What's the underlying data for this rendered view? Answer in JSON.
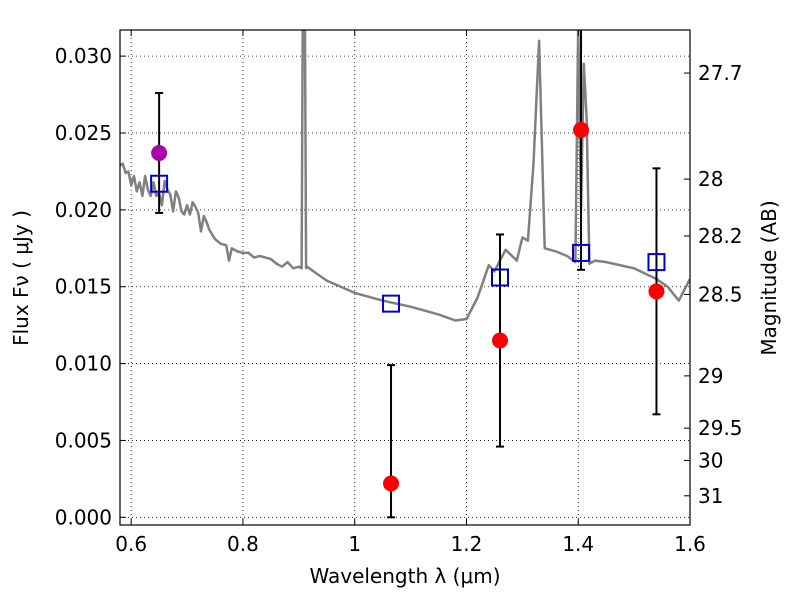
{
  "chart_data": {
    "type": "scatter",
    "xlabel": "Wavelength  λ (μm)",
    "ylabel": "Flux  Fν  ( μJy )",
    "y2label": "Magnitude (AB)",
    "xlim": [
      0.58,
      1.6
    ],
    "ylim": [
      -0.0005,
      0.0317
    ],
    "grid": true,
    "x_ticks": [
      0.6,
      0.8,
      1.0,
      1.2,
      1.4,
      1.6
    ],
    "x_tick_labels": [
      "0.6",
      "0.8",
      "1",
      "1.2",
      "1.4",
      "1.6"
    ],
    "y_ticks": [
      0.0,
      0.005,
      0.01,
      0.015,
      0.02,
      0.025,
      0.03
    ],
    "y_tick_labels": [
      "0.000",
      "0.005",
      "0.010",
      "0.015",
      "0.020",
      "0.025",
      "0.030"
    ],
    "y2_ticks": [
      {
        "flux": 0.0289,
        "label": "27.7"
      },
      {
        "flux": 0.022,
        "label": "28"
      },
      {
        "flux": 0.0183,
        "label": "28.2"
      },
      {
        "flux": 0.0145,
        "label": "28.5"
      },
      {
        "flux": 0.0092,
        "label": "29"
      },
      {
        "flux": 0.0058,
        "label": "29.5"
      },
      {
        "flux": 0.0037,
        "label": "30"
      },
      {
        "flux": 0.0014,
        "label": "31"
      }
    ],
    "series": [
      {
        "kind": "line",
        "color": "#808080",
        "x": [
          0.58,
          0.585,
          0.59,
          0.595,
          0.6,
          0.605,
          0.61,
          0.615,
          0.62,
          0.625,
          0.63,
          0.635,
          0.64,
          0.645,
          0.65,
          0.655,
          0.66,
          0.665,
          0.67,
          0.675,
          0.68,
          0.685,
          0.69,
          0.695,
          0.7,
          0.705,
          0.71,
          0.715,
          0.72,
          0.725,
          0.73,
          0.735,
          0.74,
          0.75,
          0.76,
          0.77,
          0.775,
          0.78,
          0.79,
          0.8,
          0.81,
          0.82,
          0.83,
          0.84,
          0.85,
          0.86,
          0.87,
          0.88,
          0.89,
          0.9,
          0.905,
          0.907,
          0.909,
          0.911,
          0.913,
          0.915,
          0.93,
          0.95,
          1.0,
          1.05,
          1.1,
          1.15,
          1.18,
          1.2,
          1.22,
          1.24,
          1.25,
          1.27,
          1.29,
          1.3,
          1.31,
          1.32,
          1.33,
          1.34,
          1.36,
          1.38,
          1.395,
          1.4,
          1.405,
          1.41,
          1.415,
          1.42,
          1.43,
          1.45,
          1.5,
          1.54,
          1.56,
          1.58,
          1.6
        ],
        "y": [
          0.0229,
          0.023,
          0.0224,
          0.0225,
          0.0216,
          0.0222,
          0.0212,
          0.0218,
          0.0209,
          0.0222,
          0.0213,
          0.0209,
          0.0218,
          0.0209,
          0.0211,
          0.0203,
          0.0219,
          0.0213,
          0.021,
          0.0199,
          0.0212,
          0.0208,
          0.0199,
          0.0197,
          0.0203,
          0.0197,
          0.0205,
          0.0202,
          0.0198,
          0.0186,
          0.0196,
          0.0192,
          0.0187,
          0.0181,
          0.0178,
          0.0177,
          0.0167,
          0.0175,
          0.0173,
          0.0172,
          0.0172,
          0.0169,
          0.017,
          0.0169,
          0.0168,
          0.0165,
          0.0163,
          0.0166,
          0.0162,
          0.0163,
          0.0162,
          0.0317,
          0.0317,
          0.0317,
          0.0162,
          0.0163,
          0.0159,
          0.0154,
          0.0146,
          0.0141,
          0.0137,
          0.0132,
          0.0128,
          0.0129,
          0.0143,
          0.0164,
          0.016,
          0.0174,
          0.0167,
          0.0182,
          0.018,
          0.023,
          0.031,
          0.0175,
          0.0173,
          0.017,
          0.0166,
          0.032,
          0.02,
          0.0295,
          0.026,
          0.0165,
          0.0167,
          0.0166,
          0.0162,
          0.0155,
          0.015,
          0.0141,
          0.0155
        ]
      },
      {
        "kind": "errorbar",
        "marker": "circle",
        "color": "#ff0000",
        "x": [
          1.065,
          1.26,
          1.405,
          1.54
        ],
        "y": [
          0.0022,
          0.0115,
          0.0252,
          0.0147
        ],
        "err_low": [
          0.0022,
          0.0069,
          0.0091,
          0.008
        ],
        "err_high": [
          0.0077,
          0.0069,
          0.0091,
          0.008
        ]
      },
      {
        "kind": "errorbar",
        "marker": "circle",
        "color": "#aa00aa",
        "x": [
          0.65
        ],
        "y": [
          0.0237
        ],
        "err_low": [
          0.0039
        ],
        "err_high": [
          0.0039
        ]
      },
      {
        "kind": "scatter",
        "marker": "square-open",
        "color": "#0000cc",
        "x": [
          0.65,
          1.065,
          1.26,
          1.405,
          1.54
        ],
        "y": [
          0.0217,
          0.0139,
          0.0156,
          0.0172,
          0.0166
        ]
      }
    ]
  }
}
